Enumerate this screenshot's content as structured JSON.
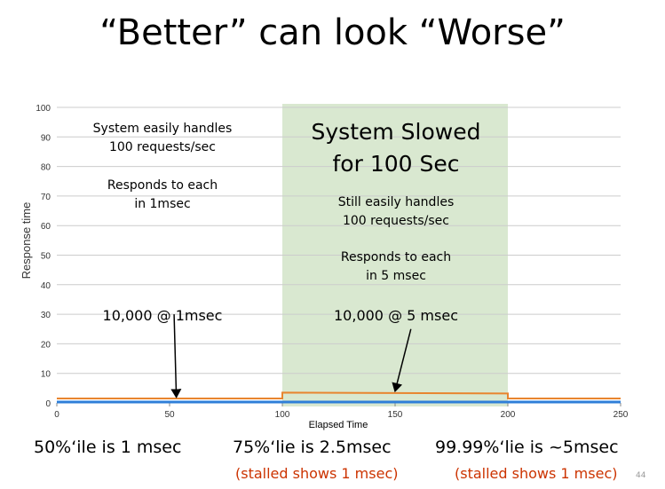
{
  "slide": {
    "title": "“Better” can look “Worse”",
    "page_number": "44"
  },
  "annotations": {
    "left_line1": "System easily handles",
    "left_line2": "100 requests/sec",
    "left_line3": "Responds to each",
    "left_line4": "in 1msec",
    "left_count": "10,000 @ 1msec",
    "band_title1": "System Slowed",
    "band_title2": "for 100 Sec",
    "band_line1": "Still easily handles",
    "band_line2": "100 requests/sec",
    "band_line3": "Responds to each",
    "band_line4": "in 5 msec",
    "band_count": "10,000 @ 5 msec"
  },
  "footer": {
    "p50": "50%‘ile is 1 msec",
    "p75": "75%‘lie is 2.5msec",
    "p75_note": "(stalled shows 1 msec)",
    "p9999": "99.99%‘lie is ~5msec",
    "p9999_note": "(stalled shows 1 msec)"
  },
  "colors": {
    "band": "#d9e8d0",
    "orange_series": "#e8852f",
    "blue_series": "#2f7fd8",
    "grid": "#cccccc",
    "axis_text": "#333333",
    "note_red": "#cc3300"
  },
  "chart_data": {
    "type": "line",
    "xlabel": "Elapsed Time",
    "ylabel": "Response time",
    "xlim": [
      0,
      250
    ],
    "ylim": [
      0,
      100
    ],
    "xticks": [
      0,
      50,
      100,
      150,
      200,
      250
    ],
    "yticks": [
      0,
      10,
      20,
      30,
      40,
      50,
      60,
      70,
      80,
      90,
      100
    ],
    "grid": true,
    "highlight_band": [
      100,
      200
    ],
    "series": [
      {
        "color": "orange",
        "x": [
          0,
          100,
          100,
          200,
          200,
          250
        ],
        "y": [
          1.5,
          1.5,
          3.5,
          3.2,
          1.5,
          1.5
        ]
      },
      {
        "color": "blue",
        "x": [
          0,
          250
        ],
        "y": [
          0.3,
          0.3
        ]
      }
    ],
    "arrows": [
      {
        "from": [
          52,
          30
        ],
        "to": [
          53,
          2
        ]
      },
      {
        "from": [
          157,
          25
        ],
        "to": [
          150,
          4
        ]
      }
    ]
  }
}
